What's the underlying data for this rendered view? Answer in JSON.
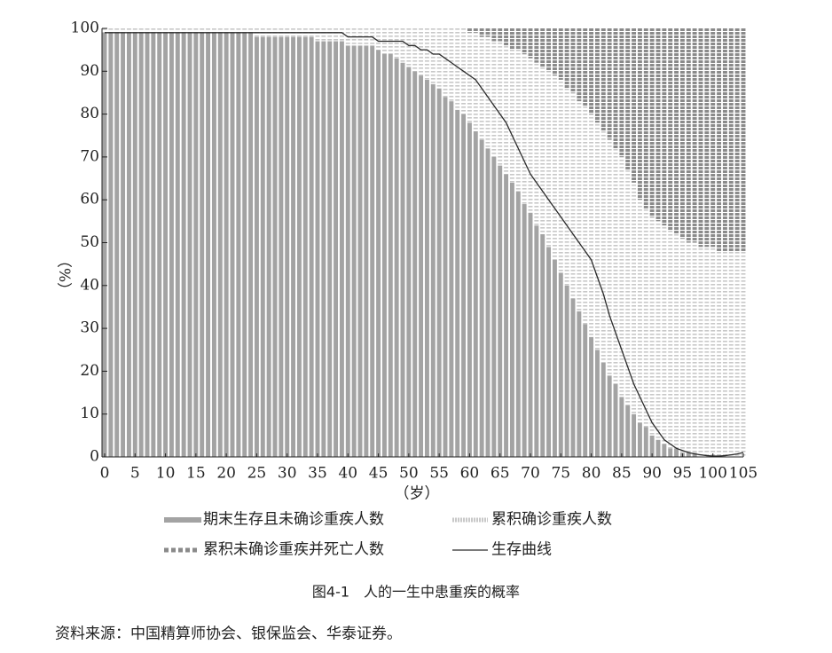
{
  "chart_data": {
    "type": "stacked-bar-line",
    "x": [
      0,
      1,
      2,
      3,
      4,
      5,
      6,
      7,
      8,
      9,
      10,
      11,
      12,
      13,
      14,
      15,
      16,
      17,
      18,
      19,
      20,
      21,
      22,
      23,
      24,
      25,
      26,
      27,
      28,
      29,
      30,
      31,
      32,
      33,
      34,
      35,
      36,
      37,
      38,
      39,
      40,
      41,
      42,
      43,
      44,
      45,
      46,
      47,
      48,
      49,
      50,
      51,
      52,
      53,
      54,
      55,
      56,
      57,
      58,
      59,
      60,
      61,
      62,
      63,
      64,
      65,
      66,
      67,
      68,
      69,
      70,
      71,
      72,
      73,
      74,
      75,
      76,
      77,
      78,
      79,
      80,
      81,
      82,
      83,
      84,
      85,
      86,
      87,
      88,
      89,
      90,
      91,
      92,
      93,
      94,
      95,
      96,
      97,
      98,
      99,
      100,
      101,
      102,
      103,
      104,
      105
    ],
    "xlim": [
      0,
      105
    ],
    "xticks": [
      0,
      5,
      10,
      15,
      20,
      25,
      30,
      35,
      40,
      45,
      50,
      55,
      60,
      65,
      70,
      75,
      80,
      85,
      90,
      95,
      100,
      105
    ],
    "ylim": [
      0,
      100
    ],
    "yticks": [
      0,
      10,
      20,
      30,
      40,
      50,
      60,
      70,
      80,
      90,
      100
    ],
    "xlabel": "（岁）",
    "ylabel": "（%）",
    "series": [
      {
        "name": "期末生存且未确诊重疾人数",
        "color": "#a3a3a3",
        "pattern": "solid",
        "kind": "bar",
        "values": [
          99,
          99,
          99,
          99,
          99,
          99,
          99,
          99,
          99,
          99,
          99,
          99,
          99,
          99,
          99,
          99,
          99,
          99,
          99,
          99,
          99,
          99,
          99,
          99,
          99,
          98,
          98,
          98,
          98,
          98,
          98,
          98,
          98,
          98,
          98,
          97,
          97,
          97,
          97,
          97,
          96,
          96,
          96,
          96,
          96,
          95,
          94,
          94,
          93,
          92,
          91,
          90,
          89,
          88,
          87,
          86,
          84,
          83,
          81,
          80,
          78,
          76,
          74,
          72,
          70,
          68,
          66,
          64,
          62,
          59,
          57,
          54,
          52,
          49,
          46,
          43,
          40,
          37,
          34,
          31,
          28,
          25,
          22,
          19,
          17,
          14,
          12,
          10,
          8,
          7,
          5,
          4,
          3,
          2,
          2,
          1,
          1,
          1,
          0,
          0,
          0,
          0,
          0,
          0,
          0,
          0
        ]
      },
      {
        "name": "累积确诊重疾人数",
        "color": "#c8c8c8",
        "pattern": "light-dash",
        "kind": "bar",
        "values": [
          1,
          1,
          1,
          1,
          1,
          1,
          1,
          1,
          1,
          1,
          1,
          1,
          1,
          1,
          1,
          1,
          1,
          1,
          1,
          1,
          1,
          1,
          1,
          1,
          1,
          2,
          2,
          2,
          2,
          2,
          2,
          2,
          2,
          2,
          2,
          3,
          3,
          3,
          3,
          3,
          4,
          4,
          4,
          4,
          4,
          5,
          6,
          6,
          7,
          8,
          9,
          10,
          11,
          12,
          13,
          14,
          16,
          17,
          19,
          20,
          21,
          23,
          24,
          26,
          27,
          29,
          30,
          31,
          33,
          35,
          36,
          38,
          39,
          41,
          43,
          45,
          46,
          48,
          49,
          51,
          52,
          53,
          54,
          55,
          55,
          56,
          55,
          54,
          52,
          51,
          51,
          51,
          51,
          51,
          50,
          50,
          49,
          49,
          49,
          49,
          49,
          48,
          48,
          48,
          48,
          48
        ]
      },
      {
        "name": "累积未确诊重疾并死亡人数",
        "color": "#8a8a8a",
        "pattern": "dark-dash",
        "kind": "bar",
        "values": [
          0,
          0,
          0,
          0,
          0,
          0,
          0,
          0,
          0,
          0,
          0,
          0,
          0,
          0,
          0,
          0,
          0,
          0,
          0,
          0,
          0,
          0,
          0,
          0,
          0,
          0,
          0,
          0,
          0,
          0,
          0,
          0,
          0,
          0,
          0,
          0,
          0,
          0,
          0,
          0,
          0,
          0,
          0,
          0,
          0,
          0,
          0,
          0,
          0,
          0,
          0,
          0,
          0,
          0,
          0,
          0,
          0,
          0,
          0,
          0,
          1,
          1,
          2,
          2,
          3,
          3,
          4,
          5,
          5,
          6,
          7,
          8,
          9,
          10,
          11,
          12,
          14,
          15,
          17,
          18,
          20,
          22,
          24,
          26,
          28,
          30,
          33,
          36,
          40,
          42,
          44,
          45,
          46,
          47,
          48,
          49,
          50,
          50,
          51,
          51,
          51,
          52,
          52,
          52,
          52,
          52
        ]
      },
      {
        "name": "生存曲线",
        "color": "#2a2a2a",
        "pattern": "line",
        "kind": "line",
        "values": [
          99,
          99,
          99,
          99,
          99,
          99,
          99,
          99,
          99,
          99,
          99,
          99,
          99,
          99,
          99,
          99,
          99,
          99,
          99,
          99,
          99,
          99,
          99,
          99,
          99,
          99,
          99,
          99,
          99,
          99,
          99,
          99,
          99,
          99,
          99,
          99,
          99,
          99,
          99,
          99,
          98,
          98,
          98,
          98,
          98,
          97,
          97,
          97,
          97,
          97,
          96,
          96,
          95,
          95,
          94,
          94,
          93,
          92,
          91,
          90,
          89,
          88,
          86,
          84,
          82,
          80,
          78,
          75,
          72,
          69,
          66,
          64,
          62,
          60,
          58,
          56,
          54,
          52,
          50,
          48,
          46,
          42,
          38,
          33,
          29,
          25,
          21,
          17,
          14,
          11,
          8,
          6,
          4,
          3,
          2,
          1.5,
          1,
          0.7,
          0.5,
          0.3,
          0.2,
          0.2,
          0.3,
          0.5,
          0.7,
          1
        ]
      }
    ],
    "caption": "图4-1　人的一生中患重疾的概率",
    "source": "资料来源：中国精算师协会、银保监会、华泰证券。"
  }
}
